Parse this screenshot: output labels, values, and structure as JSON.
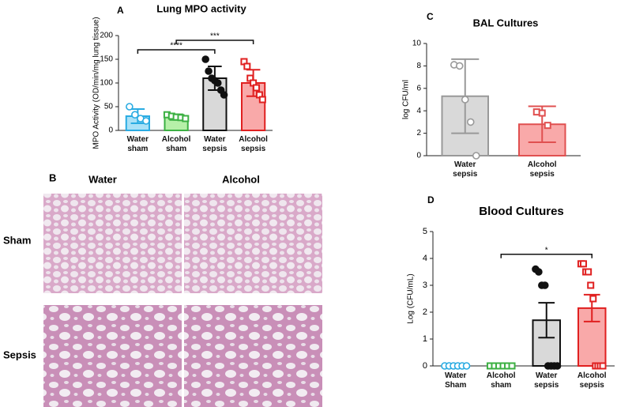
{
  "chart_data": [
    {
      "type": "bar",
      "panel": "A",
      "title": "Lung MPO activity",
      "y_label": "MPO Activity (OD/min/mg lung tissue)",
      "categories": [
        "Water sham",
        "Alcohol sham",
        "Water sepsis",
        "Alcohol sepsis"
      ],
      "values": [
        30,
        28,
        110,
        100
      ],
      "errors": [
        15,
        6,
        25,
        28
      ],
      "points": [
        [
          50,
          33,
          25,
          20
        ],
        [
          33,
          30,
          28,
          27,
          25
        ],
        [
          150,
          125,
          110,
          105,
          100,
          85,
          75
        ],
        [
          145,
          135,
          110,
          100,
          90,
          75,
          65
        ]
      ],
      "markers": [
        "circle",
        "square",
        "circle",
        "square"
      ],
      "colors": [
        "#a9e1f7",
        "#b6f0a8",
        "#d9d9d9",
        "#f9a9a9"
      ],
      "edge_colors": [
        "#29abe2",
        "#3cb043",
        "#111111",
        "#e02020"
      ],
      "ylim": [
        0,
        200
      ],
      "yticks": [
        0,
        50,
        100,
        150,
        200
      ],
      "annotations": [
        {
          "text": "****",
          "between": [
            "Water sham",
            "Water sepsis"
          ]
        },
        {
          "text": "***",
          "between": [
            "Alcohol sham",
            "Alcohol sepsis"
          ]
        }
      ]
    },
    {
      "type": "bar",
      "panel": "C",
      "title": "BAL Cultures",
      "y_label": "log CFU/ml",
      "categories": [
        "Water sepsis",
        "Alcohol sepsis"
      ],
      "values": [
        5.3,
        2.8
      ],
      "errors": [
        3.3,
        1.6
      ],
      "points": [
        [
          8.1,
          8.0,
          5.0,
          3.0,
          0
        ],
        [
          3.9,
          3.8,
          2.7
        ]
      ],
      "markers": [
        "circle",
        "square"
      ],
      "colors": [
        "#d9d9d9",
        "#f9a9a9"
      ],
      "edge_colors": [
        "#999999",
        "#e05050"
      ],
      "ylim": [
        0,
        10
      ],
      "yticks": [
        0,
        2,
        4,
        6,
        8,
        10
      ],
      "annotations": []
    },
    {
      "type": "bar",
      "panel": "D",
      "title": "Blood Cultures",
      "y_label": "Log (CFU/mL)",
      "categories": [
        "Water Sham",
        "Alcohol sham",
        "Water sepsis",
        "Alcohol sepsis"
      ],
      "values": [
        0,
        0,
        1.7,
        2.15
      ],
      "errors": [
        0,
        0,
        0.65,
        0.5
      ],
      "points": [
        [
          0,
          0,
          0,
          0,
          0,
          0
        ],
        [
          0,
          0,
          0,
          0,
          0,
          0
        ],
        [
          3.6,
          3.5,
          3.0,
          3.0,
          0,
          0,
          0,
          0
        ],
        [
          3.8,
          3.8,
          3.5,
          3.5,
          3.0,
          2.5,
          0,
          0,
          0,
          0
        ]
      ],
      "markers": [
        "circle",
        "square",
        "circle",
        "square"
      ],
      "colors": [
        "#a9e1f7",
        "#b6f0a8",
        "#d9d9d9",
        "#f9a9a9"
      ],
      "edge_colors": [
        "#29abe2",
        "#3cb043",
        "#111111",
        "#e02020"
      ],
      "ylim": [
        0,
        5
      ],
      "yticks": [
        0,
        1,
        2,
        3,
        4,
        5
      ],
      "annotations": [
        {
          "text": "*",
          "between": [
            "Alcohol sham",
            "Alcohol sepsis"
          ]
        }
      ]
    }
  ],
  "histology": {
    "panel": "B",
    "columns": [
      "Water",
      "Alcohol"
    ],
    "rows": [
      "Sham",
      "Sepsis"
    ]
  }
}
